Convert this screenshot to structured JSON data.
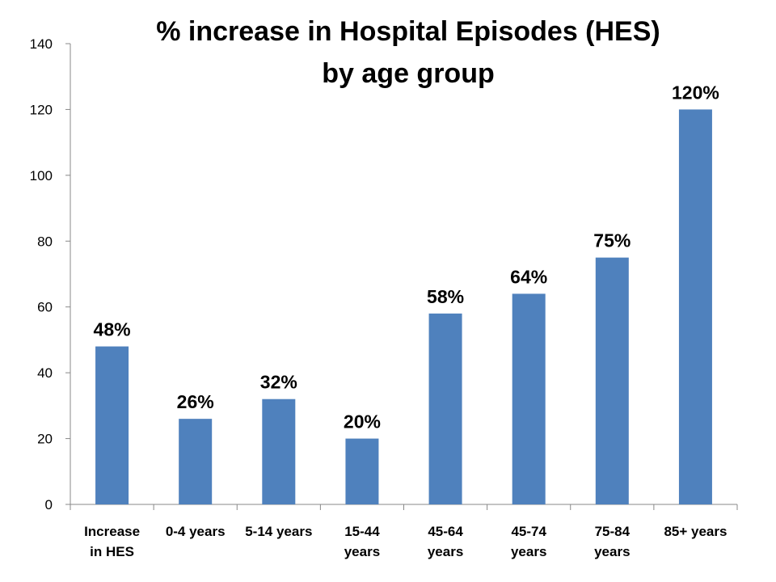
{
  "chart_data": {
    "type": "bar",
    "title_lines": [
      "% increase in Hospital Episodes (HES)",
      "by age group"
    ],
    "categories": [
      [
        "Increase",
        "in HES"
      ],
      [
        "0-4 years"
      ],
      [
        "5-14 years"
      ],
      [
        "15-44",
        "years"
      ],
      [
        "45-64",
        "years"
      ],
      [
        "45-74",
        "years"
      ],
      [
        "75-84",
        "years"
      ],
      [
        "85+ years"
      ]
    ],
    "values": [
      48,
      26,
      32,
      20,
      58,
      64,
      75,
      120
    ],
    "data_labels": [
      "48%",
      "26%",
      "32%",
      "20%",
      "58%",
      "64%",
      "75%",
      "120%"
    ],
    "ylim": [
      0,
      140
    ],
    "yticks": [
      0,
      20,
      40,
      60,
      80,
      100,
      120,
      140
    ],
    "grid": false,
    "legend": "none",
    "bar_color": "#4F81BD"
  }
}
